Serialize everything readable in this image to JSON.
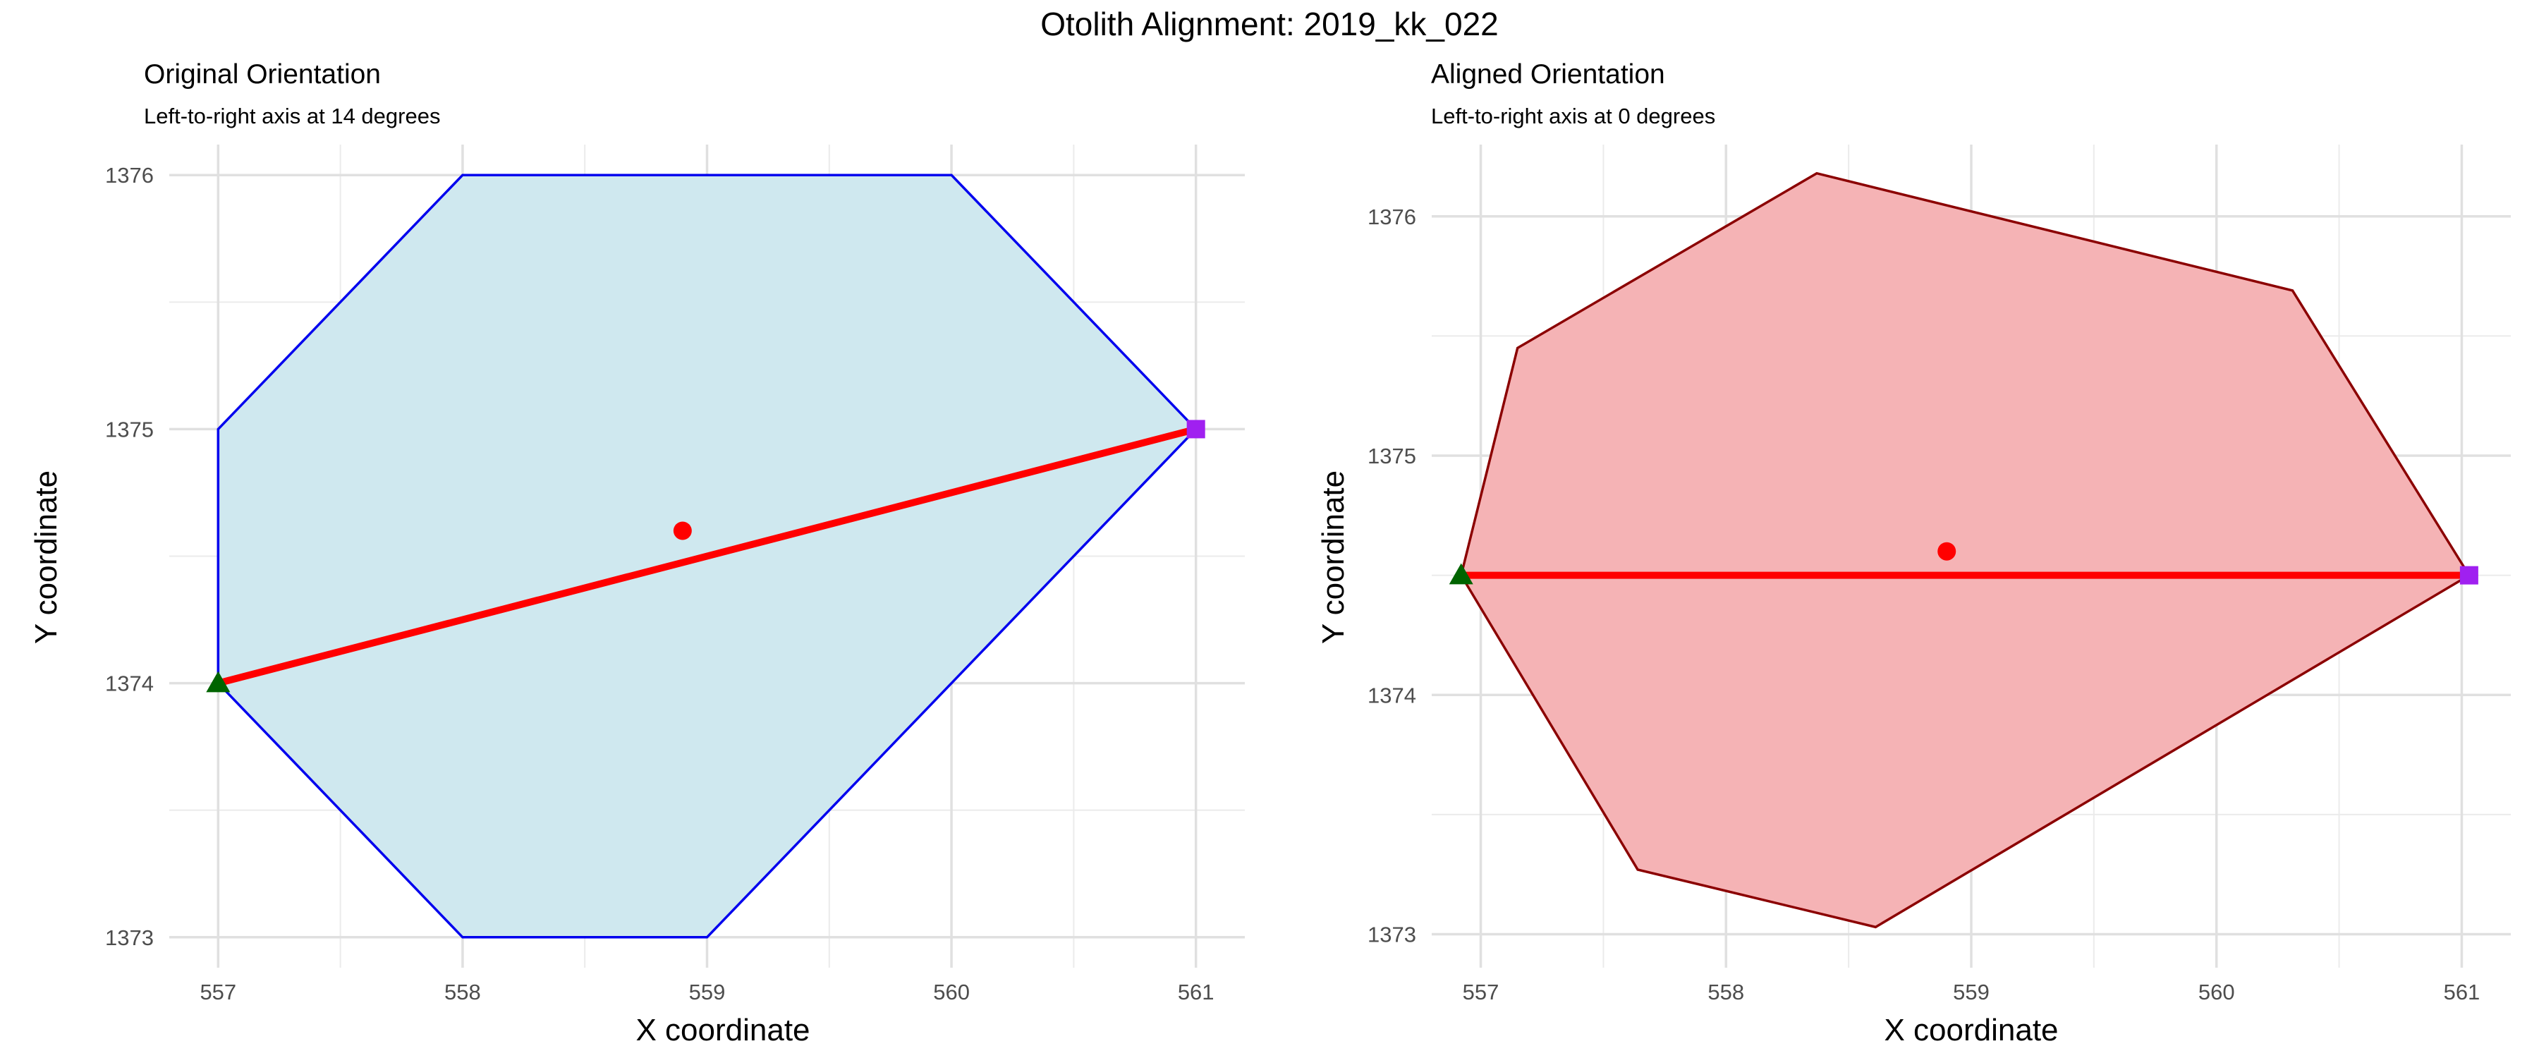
{
  "title": "Otolith Alignment: 2019_kk_022",
  "chart_data": [
    {
      "type": "scatter",
      "title": "Original Orientation",
      "subtitle": "Left-to-right axis at 14 degrees",
      "xlabel": "X coordinate",
      "ylabel": "Y coordinate",
      "xlim": [
        556.8,
        561.2
      ],
      "ylim": [
        1372.88,
        1376.12
      ],
      "xticks": [
        557,
        558,
        559,
        560,
        561
      ],
      "yticks": [
        1373,
        1374,
        1375,
        1376
      ],
      "grid": true,
      "colors": {
        "fill": "#cfe8ef",
        "outline": "#0000ee",
        "axis_line": "#ff0000",
        "centroid": "#ff0000",
        "left_point": "#006400",
        "right_point": "#a020f0"
      },
      "polygon": [
        {
          "x": 557,
          "y": 1374
        },
        {
          "x": 557,
          "y": 1375
        },
        {
          "x": 558,
          "y": 1376
        },
        {
          "x": 560,
          "y": 1376
        },
        {
          "x": 561,
          "y": 1375
        },
        {
          "x": 559,
          "y": 1373
        },
        {
          "x": 558,
          "y": 1373
        }
      ],
      "axis_segment": [
        {
          "x": 557,
          "y": 1374
        },
        {
          "x": 561,
          "y": 1375
        }
      ],
      "centroid": {
        "x": 558.9,
        "y": 1374.6
      },
      "left_point": {
        "x": 557,
        "y": 1374
      },
      "right_point": {
        "x": 561,
        "y": 1375
      }
    },
    {
      "type": "scatter",
      "title": "Aligned Orientation",
      "subtitle": "Left-to-right axis at 0 degrees",
      "xlabel": "X coordinate",
      "ylabel": "Y coordinate",
      "xlim": [
        556.8,
        561.2
      ],
      "ylim": [
        1372.86,
        1376.3
      ],
      "xticks": [
        557,
        558,
        559,
        560,
        561
      ],
      "yticks": [
        1373,
        1374,
        1375,
        1376
      ],
      "grid": true,
      "colors": {
        "fill": "#f5b3b5",
        "outline": "#8b0000",
        "axis_line": "#ff0000",
        "centroid": "#ff0000",
        "left_point": "#006400",
        "right_point": "#a020f0"
      },
      "polygon": [
        {
          "x": 556.92,
          "y": 1374.5
        },
        {
          "x": 557.15,
          "y": 1375.45
        },
        {
          "x": 558.37,
          "y": 1376.18
        },
        {
          "x": 560.31,
          "y": 1375.69
        },
        {
          "x": 561.03,
          "y": 1374.5
        },
        {
          "x": 558.61,
          "y": 1373.03
        },
        {
          "x": 557.64,
          "y": 1373.27
        }
      ],
      "axis_segment": [
        {
          "x": 556.92,
          "y": 1374.5
        },
        {
          "x": 561.03,
          "y": 1374.5
        }
      ],
      "centroid": {
        "x": 558.9,
        "y": 1374.6
      },
      "left_point": {
        "x": 556.92,
        "y": 1374.5
      },
      "right_point": {
        "x": 561.03,
        "y": 1374.5
      }
    }
  ]
}
